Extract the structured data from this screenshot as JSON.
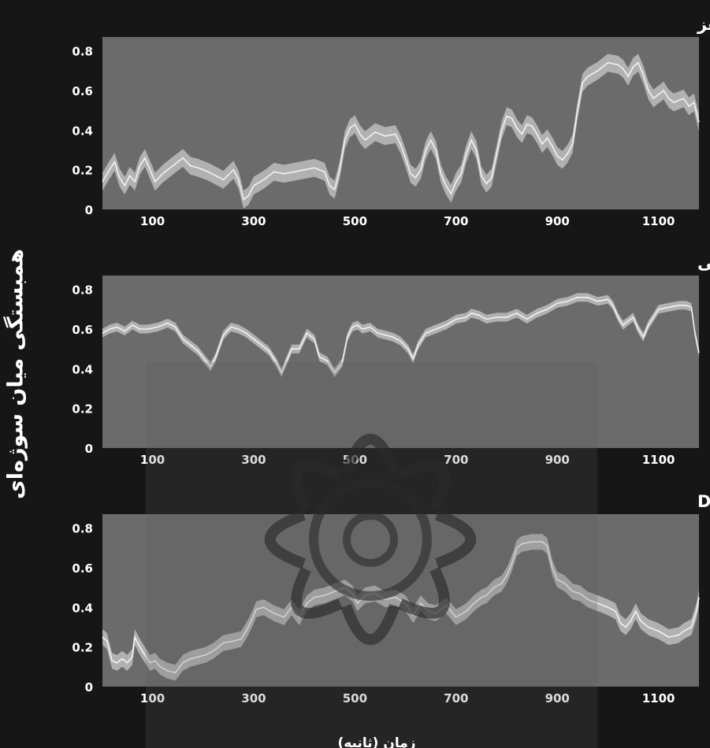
{
  "figure": {
    "ylabel": "همبستگی میان سوژه‌ای",
    "xlabel": "زمان (ثانیه)"
  },
  "colors": {
    "background": "#161616",
    "plot_bg": "#6b6b6b",
    "band": "#c8c8c8",
    "mean_line": "#f2f2f2",
    "text": "#ffffff",
    "watermark": "#2a2a2a"
  },
  "chart_data": [
    {
      "type": "line",
      "title": "الف: درگیری کلی در تمامی مناطق مغز",
      "xlabel": "",
      "ylabel": "",
      "xlim": [
        1,
        1180
      ],
      "ylim": [
        0,
        0.87
      ],
      "xticks": [
        100,
        300,
        500,
        700,
        900,
        1100
      ],
      "yticks": [
        0,
        0.2,
        0.4,
        0.6,
        0.8
      ],
      "ytick_labels": [
        "0",
        "0.2",
        "0.4",
        "0.6",
        "0.8"
      ],
      "grid": false,
      "band_halfwidth": 0.045,
      "series": [
        {
          "x": [
            1,
            15,
            25,
            35,
            45,
            55,
            65,
            75,
            85,
            95,
            105,
            120,
            140,
            160,
            175,
            190,
            210,
            240,
            260,
            270,
            280,
            290,
            300,
            320,
            340,
            360,
            380,
            400,
            420,
            440,
            450,
            460,
            470,
            480,
            490,
            500,
            510,
            520,
            540,
            560,
            580,
            590,
            600,
            610,
            620,
            630,
            640,
            650,
            660,
            670,
            680,
            690,
            700,
            710,
            720,
            730,
            740,
            750,
            760,
            770,
            780,
            790,
            800,
            810,
            820,
            830,
            840,
            850,
            860,
            870,
            880,
            890,
            900,
            910,
            920,
            930,
            940,
            950,
            960,
            980,
            1000,
            1020,
            1030,
            1040,
            1050,
            1060,
            1070,
            1080,
            1090,
            1100,
            1110,
            1120,
            1130,
            1140,
            1150,
            1160,
            1170,
            1180
          ],
          "y": [
            0.14,
            0.2,
            0.24,
            0.16,
            0.12,
            0.17,
            0.14,
            0.22,
            0.26,
            0.2,
            0.14,
            0.18,
            0.22,
            0.26,
            0.22,
            0.21,
            0.19,
            0.15,
            0.2,
            0.15,
            0.05,
            0.07,
            0.12,
            0.15,
            0.19,
            0.18,
            0.19,
            0.2,
            0.21,
            0.19,
            0.12,
            0.1,
            0.2,
            0.35,
            0.41,
            0.43,
            0.38,
            0.35,
            0.39,
            0.37,
            0.38,
            0.33,
            0.26,
            0.18,
            0.16,
            0.2,
            0.3,
            0.35,
            0.3,
            0.18,
            0.12,
            0.08,
            0.14,
            0.18,
            0.28,
            0.35,
            0.3,
            0.17,
            0.13,
            0.16,
            0.28,
            0.4,
            0.47,
            0.46,
            0.41,
            0.38,
            0.43,
            0.42,
            0.38,
            0.33,
            0.36,
            0.32,
            0.27,
            0.25,
            0.28,
            0.33,
            0.5,
            0.64,
            0.67,
            0.7,
            0.74,
            0.73,
            0.71,
            0.67,
            0.72,
            0.74,
            0.68,
            0.6,
            0.56,
            0.58,
            0.6,
            0.56,
            0.54,
            0.55,
            0.56,
            0.52,
            0.54,
            0.44
          ]
        }
      ]
    },
    {
      "type": "line",
      "title": "ب: تاثیرگذاری فیلم در قشر شنوایی",
      "xlabel": "",
      "ylabel": "",
      "xlim": [
        1,
        1180
      ],
      "ylim": [
        0,
        0.87
      ],
      "xticks": [
        100,
        300,
        500,
        700,
        900,
        1100
      ],
      "yticks": [
        0,
        0.2,
        0.4,
        0.6,
        0.8
      ],
      "ytick_labels": [
        "0",
        "0.2",
        "0.4",
        "0.6",
        "0.8"
      ],
      "grid": false,
      "band_halfwidth": 0.022,
      "series": [
        {
          "x": [
            1,
            15,
            30,
            45,
            60,
            75,
            90,
            110,
            130,
            145,
            160,
            175,
            190,
            205,
            215,
            225,
            240,
            255,
            270,
            285,
            300,
            315,
            330,
            345,
            355,
            365,
            375,
            390,
            405,
            420,
            430,
            445,
            460,
            475,
            485,
            495,
            505,
            515,
            530,
            545,
            560,
            575,
            590,
            605,
            615,
            625,
            640,
            660,
            680,
            700,
            720,
            730,
            745,
            760,
            780,
            800,
            820,
            840,
            860,
            880,
            900,
            920,
            940,
            960,
            980,
            1000,
            1010,
            1020,
            1030,
            1040,
            1050,
            1060,
            1070,
            1080,
            1090,
            1100,
            1120,
            1140,
            1155,
            1165,
            1172,
            1180
          ],
          "y": [
            0.58,
            0.6,
            0.61,
            0.59,
            0.62,
            0.6,
            0.6,
            0.61,
            0.63,
            0.61,
            0.55,
            0.52,
            0.49,
            0.44,
            0.41,
            0.46,
            0.57,
            0.61,
            0.6,
            0.58,
            0.55,
            0.52,
            0.49,
            0.43,
            0.38,
            0.44,
            0.5,
            0.5,
            0.58,
            0.55,
            0.46,
            0.44,
            0.38,
            0.43,
            0.56,
            0.61,
            0.62,
            0.6,
            0.61,
            0.58,
            0.57,
            0.56,
            0.54,
            0.5,
            0.45,
            0.52,
            0.58,
            0.6,
            0.62,
            0.65,
            0.66,
            0.68,
            0.67,
            0.65,
            0.66,
            0.66,
            0.68,
            0.65,
            0.68,
            0.7,
            0.73,
            0.74,
            0.76,
            0.76,
            0.74,
            0.75,
            0.72,
            0.66,
            0.62,
            0.64,
            0.66,
            0.6,
            0.56,
            0.62,
            0.66,
            0.7,
            0.71,
            0.72,
            0.72,
            0.71,
            0.58,
            0.48
          ]
        }
      ]
    },
    {
      "type": "line",
      "title": "ج: تاثیرگذاری فیلم در قشر DLPFC",
      "xlabel": "",
      "ylabel": "",
      "xlim": [
        1,
        1180
      ],
      "ylim": [
        0,
        0.87
      ],
      "xticks": [
        100,
        300,
        500,
        700,
        900,
        1100
      ],
      "yticks": [
        0,
        0.2,
        0.4,
        0.6,
        0.8
      ],
      "ytick_labels": [
        "0",
        "0.2",
        "0.4",
        "0.6",
        "0.8"
      ],
      "grid": false,
      "band_halfwidth": 0.04,
      "series": [
        {
          "x": [
            1,
            10,
            20,
            30,
            40,
            50,
            60,
            65,
            75,
            85,
            95,
            105,
            115,
            130,
            145,
            160,
            175,
            190,
            205,
            220,
            240,
            260,
            275,
            285,
            295,
            305,
            320,
            340,
            360,
            375,
            390,
            405,
            420,
            440,
            460,
            480,
            495,
            505,
            520,
            540,
            560,
            580,
            600,
            615,
            630,
            645,
            660,
            680,
            700,
            720,
            735,
            750,
            760,
            775,
            790,
            800,
            810,
            820,
            830,
            850,
            870,
            880,
            890,
            900,
            915,
            930,
            945,
            960,
            980,
            1000,
            1015,
            1025,
            1035,
            1045,
            1055,
            1065,
            1080,
            1100,
            1120,
            1140,
            1150,
            1165,
            1175,
            1180
          ],
          "y": [
            0.25,
            0.23,
            0.13,
            0.12,
            0.14,
            0.12,
            0.15,
            0.25,
            0.2,
            0.16,
            0.12,
            0.13,
            0.1,
            0.08,
            0.07,
            0.12,
            0.14,
            0.15,
            0.16,
            0.18,
            0.22,
            0.23,
            0.24,
            0.28,
            0.33,
            0.39,
            0.4,
            0.37,
            0.35,
            0.4,
            0.35,
            0.42,
            0.45,
            0.46,
            0.48,
            0.5,
            0.47,
            0.42,
            0.46,
            0.47,
            0.44,
            0.45,
            0.42,
            0.36,
            0.42,
            0.38,
            0.37,
            0.41,
            0.35,
            0.38,
            0.42,
            0.45,
            0.46,
            0.5,
            0.52,
            0.56,
            0.62,
            0.7,
            0.72,
            0.73,
            0.73,
            0.71,
            0.6,
            0.54,
            0.52,
            0.48,
            0.47,
            0.44,
            0.42,
            0.4,
            0.38,
            0.32,
            0.3,
            0.33,
            0.38,
            0.33,
            0.3,
            0.28,
            0.25,
            0.26,
            0.28,
            0.3,
            0.38,
            0.45
          ]
        }
      ]
    }
  ]
}
